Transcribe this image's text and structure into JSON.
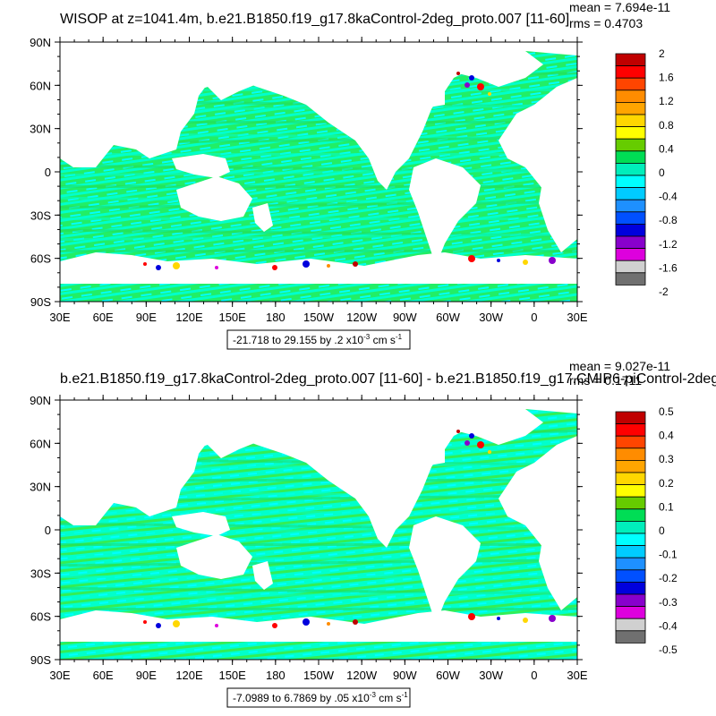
{
  "panels": [
    {
      "title": "WISOP at z=1041.4m, b.e21.B1850.f19_g17.8kaControl-2deg_proto.007 [11-60]",
      "stats": {
        "mean": "mean = 7.694e-11",
        "rms": "rms = 0.4703"
      },
      "range_label": "-21.718 to 29.155 by .2 x10",
      "range_exp": "-3",
      "range_units": " cm s",
      "range_units_exp": "-1",
      "colorbar_labels": [
        "2",
        "1.6",
        "1.2",
        "0.8",
        "0.4",
        "0",
        "-0.4",
        "-0.8",
        "-1.2",
        "-1.6",
        "-2"
      ]
    },
    {
      "title": "b.e21.B1850.f19_g17.8kaControl-2deg_proto.007 [11-60] - b.e21.B1850.f19_g17.CMIP6-piControl-2deg",
      "stats": {
        "mean": "mean = 9.027e-11",
        "rms": "rms = 0.1711"
      },
      "range_label": "-7.0989 to 6.7869 by .05 x10",
      "range_exp": "-3",
      "range_units": " cm s",
      "range_units_exp": "-1",
      "colorbar_labels": [
        "0.5",
        "0.4",
        "0.3",
        "0.2",
        "0.1",
        "0",
        "-0.1",
        "-0.2",
        "-0.3",
        "-0.4",
        "-0.5"
      ]
    }
  ],
  "lat_labels": [
    "90N",
    "60N",
    "30N",
    "0",
    "30S",
    "60S",
    "90S"
  ],
  "lon_labels": [
    "30E",
    "60E",
    "90E",
    "120E",
    "150E",
    "180",
    "150W",
    "120W",
    "90W",
    "60W",
    "30W",
    "0",
    "30E"
  ],
  "colorbar_colors": [
    "#c00000",
    "#ff0000",
    "#ff4500",
    "#ff8c00",
    "#ffa500",
    "#ffd700",
    "#ffff00",
    "#66cc00",
    "#00dd55",
    "#00eebb",
    "#00ffff",
    "#00ccff",
    "#1e90ff",
    "#0050ff",
    "#0000dd",
    "#8800cc",
    "#dd00dd",
    "#d0d0d0",
    "#707070"
  ],
  "ocean_color": "#00ff80",
  "ocean_alt_color": "#00ffff"
}
